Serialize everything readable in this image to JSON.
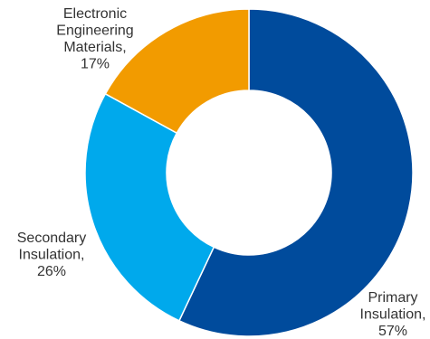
{
  "chart_data": {
    "type": "pie",
    "donut": true,
    "title": "",
    "legend": "none",
    "slices": [
      {
        "name": "Primary Insulation",
        "value": 57,
        "color": "#004b9c",
        "label_lines": [
          "Primary",
          "Insulation,",
          "57%"
        ]
      },
      {
        "name": "Secondary Insulation",
        "value": 26,
        "color": "#00a9ec",
        "label_lines": [
          "Secondary",
          "Insulation,",
          "26%"
        ]
      },
      {
        "name": "Electronic Engineering Materials",
        "value": 17,
        "color": "#f29b00",
        "label_lines": [
          "Electronic",
          "Engineering",
          "Materials,",
          "17%"
        ]
      }
    ],
    "start_angle_deg": 0,
    "direction": "clockwise"
  }
}
